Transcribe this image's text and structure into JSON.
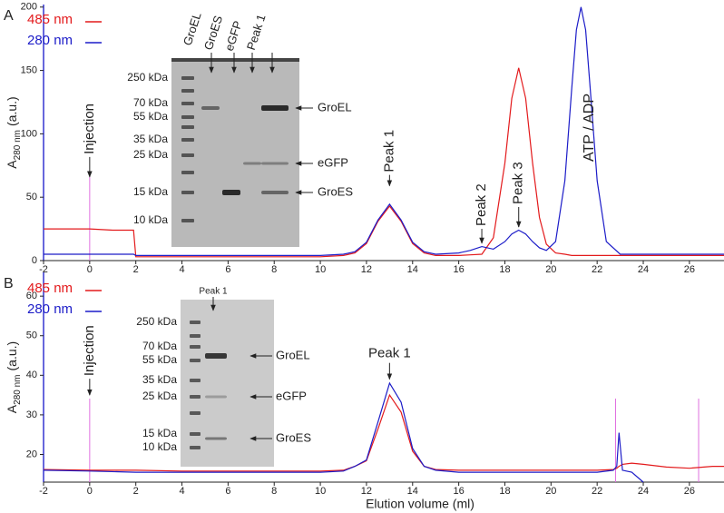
{
  "chart_data": [
    {
      "type": "line",
      "panel_label": "A",
      "y_label": "A",
      "y_label_sub": "280 nm",
      "y_label_suffix": "(a.u.)",
      "xlim": [
        -2,
        27.5
      ],
      "xticks": [
        -2,
        0,
        2,
        4,
        6,
        8,
        10,
        12,
        14,
        16,
        18,
        20,
        22,
        24,
        26
      ],
      "ylim": [
        0,
        202
      ],
      "yticks": [
        0,
        50,
        100,
        150,
        200
      ],
      "legend": "upper left",
      "x": [
        -2,
        -1,
        0,
        1,
        1.9,
        2,
        3,
        4,
        5,
        6,
        7,
        8,
        9,
        10,
        11,
        11.5,
        12,
        12.5,
        13,
        13.5,
        14,
        14.5,
        15,
        16,
        16.5,
        17,
        17.5,
        18,
        18.3,
        18.6,
        18.9,
        19.2,
        19.5,
        19.8,
        20.2,
        20.6,
        20.9,
        21.1,
        21.3,
        21.5,
        21.7,
        22,
        22.4,
        23,
        24,
        25,
        26,
        27.5
      ],
      "series": [
        {
          "name": "485 nm",
          "color": "#e31a1c",
          "values": [
            25,
            25,
            25,
            24,
            24,
            3,
            3,
            3,
            3,
            3,
            3,
            3,
            3,
            3,
            4,
            6,
            13.5,
            31,
            43,
            31,
            13.5,
            6,
            4,
            4,
            4.5,
            5,
            18,
            77,
            128,
            152,
            128,
            77,
            34,
            13,
            6,
            5,
            4,
            4,
            4,
            4,
            4,
            4,
            4,
            4,
            4,
            4,
            4,
            4
          ]
        },
        {
          "name": "280 nm",
          "color": "#1c1cc8",
          "values": [
            5,
            5,
            5,
            5,
            5,
            4,
            4,
            4,
            4,
            4,
            4,
            4,
            4,
            4,
            5,
            7,
            14.5,
            32,
            44.5,
            32,
            14.5,
            7,
            5,
            6,
            8,
            11,
            9,
            15,
            21,
            24,
            21,
            15,
            10,
            8,
            15,
            63,
            136,
            182,
            200,
            182,
            136,
            63,
            15,
            5,
            5,
            5,
            5,
            5
          ]
        }
      ],
      "vlines": [
        0
      ],
      "annotations": [
        {
          "text": "Injection",
          "x": 0,
          "y": 66
        },
        {
          "text": "Peak 1",
          "x": 13,
          "y": 59
        },
        {
          "text": "Peak 2",
          "x": 17,
          "y": 13.6
        },
        {
          "text": "Peak 3",
          "x": 18.6,
          "y": 26.5
        },
        {
          "text": "ATP / ADP"
        }
      ],
      "inset": {
        "lanes": [
          "GroEL",
          "GroES",
          "eGFP",
          "Peak 1"
        ],
        "ladder": [
          "250 kDa",
          "70 kDa",
          "55 kDa",
          "35 kDa",
          "25 kDa",
          "15 kDa",
          "10 kDa"
        ],
        "bands": [
          "GroEL",
          "eGFP",
          "GroES"
        ]
      }
    },
    {
      "type": "line",
      "panel_label": "B",
      "y_label": "A",
      "y_label_sub": "280 nm",
      "y_label_suffix": "(a.u.)",
      "x_label": "Elution volume (ml)",
      "xlim": [
        -2,
        27.5
      ],
      "xticks": [
        -2,
        0,
        2,
        4,
        6,
        8,
        10,
        12,
        14,
        16,
        18,
        20,
        22,
        24,
        26
      ],
      "ylim": [
        13,
        66
      ],
      "yticks": [
        20,
        30,
        40,
        50,
        60
      ],
      "legend": "upper left",
      "x": [
        -2,
        0,
        2,
        4,
        6,
        8,
        10,
        11,
        11.5,
        12,
        12.5,
        13,
        13.5,
        14,
        14.5,
        15,
        16,
        18,
        20,
        22,
        22.7,
        22.85,
        22.95,
        23.1,
        23.5,
        24,
        25,
        26,
        27,
        27.5
      ],
      "series": [
        {
          "name": "485 nm",
          "color": "#e31a1c",
          "values": [
            16.2,
            16,
            16,
            15.8,
            15.8,
            15.8,
            15.8,
            16,
            17,
            18.4,
            26.4,
            35,
            30.7,
            20.8,
            17,
            16.2,
            16,
            16,
            16,
            16,
            16.2,
            16.5,
            17,
            17.5,
            17.8,
            17.5,
            16.8,
            16.5,
            17,
            17
          ]
        },
        {
          "name": "280 nm",
          "color": "#1c1cc8",
          "values": [
            16,
            15.8,
            15.5,
            15.5,
            15.5,
            15.5,
            15.5,
            15.8,
            17,
            18.6,
            28.2,
            38,
            33.2,
            21.5,
            17,
            16,
            15.5,
            15.5,
            15.5,
            15.5,
            16,
            17,
            25.5,
            16,
            15.5,
            13,
            null,
            null,
            null,
            null
          ]
        }
      ],
      "vlines": [
        0,
        22.8,
        26.4
      ],
      "annotations": [
        {
          "text": "Injection",
          "x": 0,
          "y": 35
        },
        {
          "text": "Peak 1",
          "x": 13,
          "y": 39
        }
      ],
      "inset": {
        "lanes": [
          "Peak 1"
        ],
        "ladder": [
          "250 kDa",
          "70 kDa",
          "55 kDa",
          "35 kDa",
          "25 kDa",
          "15 kDa",
          "10 kDa"
        ],
        "bands": [
          "GroEL",
          "eGFP",
          "GroES"
        ]
      }
    }
  ]
}
